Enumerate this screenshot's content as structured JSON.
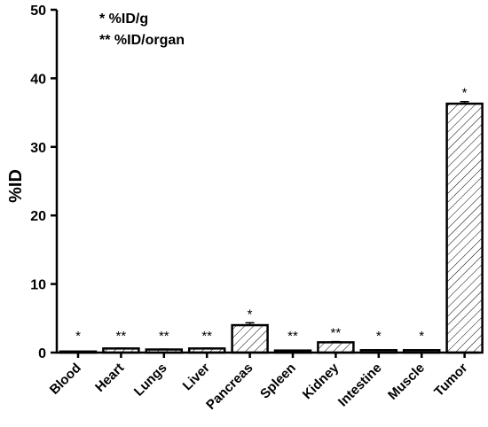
{
  "chart_data": {
    "type": "bar",
    "ylabel": "%ID",
    "ylim": [
      0,
      50
    ],
    "yticks": [
      0,
      10,
      20,
      30,
      40,
      50
    ],
    "categories": [
      "Blood",
      "Heart",
      "Lungs",
      "Liver",
      "Pancreas",
      "Spleen",
      "Kidney",
      "Intestine",
      "Muscle",
      "Tumor"
    ],
    "values": [
      0.05,
      0.6,
      0.45,
      0.6,
      4.0,
      0.3,
      1.5,
      0.35,
      0.35,
      36.3
    ],
    "errors": [
      0,
      0.05,
      0.05,
      0.05,
      0.35,
      0.03,
      0.1,
      0.03,
      0.03,
      0.3
    ],
    "markers": [
      "*",
      "**",
      "**",
      "**",
      "*",
      "**",
      "**",
      "*",
      "*",
      "*"
    ],
    "fill_pattern": "diagonal-hatch",
    "legend": [
      {
        "symbol": "*",
        "text": "%ID/g"
      },
      {
        "symbol": "**",
        "text": "%ID/organ"
      }
    ],
    "legend_position": "top-left",
    "grid": false
  }
}
